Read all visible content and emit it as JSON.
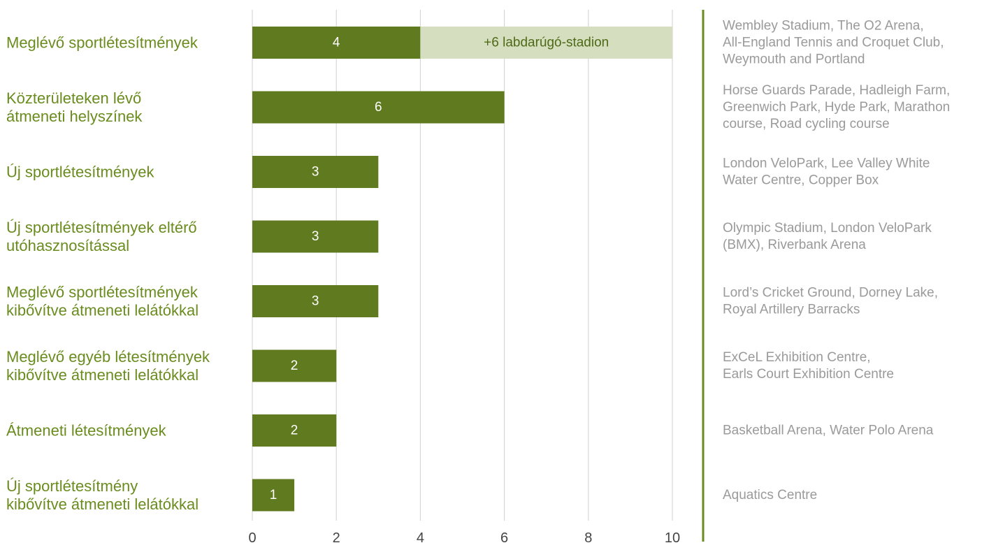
{
  "colors": {
    "bar": "#5f7a1f",
    "bar_extra": "#d5dfc0",
    "category_text": "#6a8c1e",
    "note_text": "#9a9a9a",
    "grid": "#cfcfcf",
    "tick_text": "#444444",
    "bar_text": "#ffffff",
    "extra_text": "#4f6a16",
    "separator": "#6b8a1f"
  },
  "chart_data": {
    "type": "bar",
    "orientation": "horizontal",
    "stacked": true,
    "xlim": [
      0,
      10
    ],
    "xticks": [
      0,
      2,
      4,
      6,
      8,
      10
    ],
    "grid": "vertical",
    "categories": [
      [
        "Meglévő sportlétesítmények"
      ],
      [
        "Közterületeken lévő",
        "átmeneti helyszínek"
      ],
      [
        "Új sportlétesítmények"
      ],
      [
        "Új sportlétesítmények eltérő",
        "utóhasznosítással"
      ],
      [
        "Meglévő sportlétesítmények",
        "kibővítve átmeneti lelátókkal"
      ],
      [
        "Meglévő egyéb létesítmények",
        "kibővítve átmeneti lelátókkal"
      ],
      [
        "Átmeneti létesítmények"
      ],
      [
        "Új sportlétesítmény",
        "kibővítve átmeneti lelátókkal"
      ]
    ],
    "values": [
      4,
      6,
      3,
      3,
      3,
      2,
      2,
      1
    ],
    "value_labels": [
      "4",
      "6",
      "3",
      "3",
      "3",
      "2",
      "2",
      "1"
    ],
    "extra": [
      {
        "index": 0,
        "value": 6,
        "label": "+6 labdarúgó-stadion"
      }
    ],
    "notes": [
      [
        "Wembley Stadium, The O2 Arena,",
        "All-England Tennis and Croquet Club,",
        "Weymouth and Portland"
      ],
      [
        "Horse Guards Parade, Hadleigh Farm,",
        "Greenwich Park, Hyde Park, Marathon",
        "course, Road cycling course"
      ],
      [
        "London VeloPark, Lee Valley White",
        "Water Centre, Copper Box"
      ],
      [
        "Olympic Stadium, London VeloPark",
        "(BMX), Riverbank Arena"
      ],
      [
        "Lord’s Cricket Ground, Dorney Lake,",
        "Royal Artillery Barracks"
      ],
      [
        "ExCeL Exhibition Centre,",
        "Earls Court Exhibition Centre"
      ],
      [
        "Basketball Arena, Water Polo Arena"
      ],
      [
        "Aquatics Centre"
      ]
    ]
  }
}
